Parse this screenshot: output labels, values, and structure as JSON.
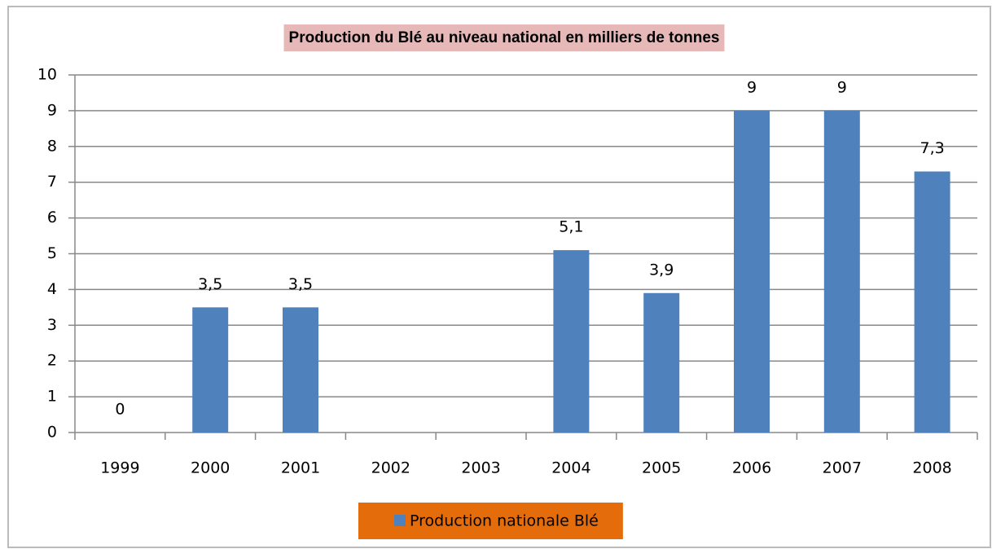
{
  "chart_data": {
    "type": "bar",
    "title": "Production du Blé au niveau national en milliers de tonnes",
    "categories": [
      "1999",
      "2000",
      "2001",
      "2002",
      "2003",
      "2004",
      "2005",
      "2006",
      "2007",
      "2008"
    ],
    "series": [
      {
        "name": "Production nationale Blé",
        "color": "#4f81bd",
        "values": [
          0,
          3.5,
          3.5,
          null,
          null,
          5.1,
          3.9,
          9,
          9,
          7.3
        ],
        "value_labels": [
          "0",
          "3,5",
          "3,5",
          null,
          null,
          "5,1",
          "3,9",
          "9",
          "9",
          "7,3"
        ]
      }
    ],
    "ylim": [
      0,
      10
    ],
    "yticks": [
      0,
      1,
      2,
      3,
      4,
      5,
      6,
      7,
      8,
      9,
      10
    ],
    "grid": true,
    "legend": "bottom"
  }
}
